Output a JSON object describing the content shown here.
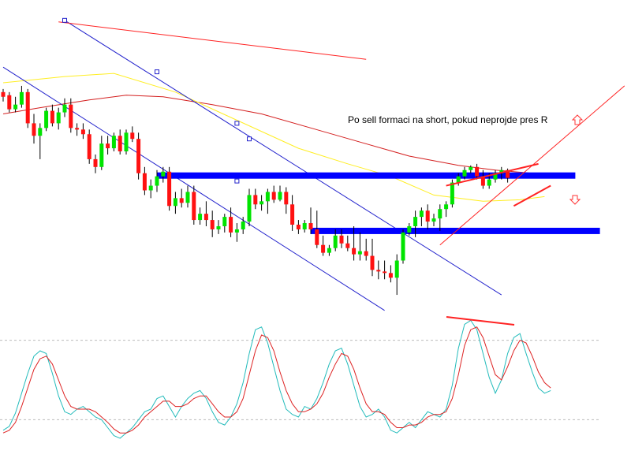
{
  "chart_data": [
    {
      "type": "candlestick",
      "colors": {
        "up": "#00e400",
        "down": "#ff1111",
        "wick": "#000000",
        "ma_fast": "#ffee22",
        "ma_slow": "#d42020",
        "level": "#0000ff",
        "channel": "#2222cc",
        "trend": "#ff2222"
      },
      "candles": [
        {
          "o": 58,
          "h": 60,
          "l": 52,
          "c": 55
        },
        {
          "o": 56,
          "h": 58,
          "l": 45,
          "c": 47
        },
        {
          "o": 47,
          "h": 55,
          "l": 45,
          "c": 50
        },
        {
          "o": 50,
          "h": 62,
          "l": 48,
          "c": 58
        },
        {
          "o": 58,
          "h": 60,
          "l": 35,
          "c": 38
        },
        {
          "o": 38,
          "h": 44,
          "l": 25,
          "c": 30
        },
        {
          "o": 30,
          "h": 38,
          "l": 15,
          "c": 35
        },
        {
          "o": 35,
          "h": 48,
          "l": 33,
          "c": 46
        },
        {
          "o": 46,
          "h": 50,
          "l": 36,
          "c": 38
        },
        {
          "o": 38,
          "h": 48,
          "l": 34,
          "c": 45
        },
        {
          "o": 45,
          "h": 54,
          "l": 42,
          "c": 50
        },
        {
          "o": 50,
          "h": 54,
          "l": 32,
          "c": 35
        },
        {
          "o": 35,
          "h": 38,
          "l": 30,
          "c": 34
        },
        {
          "o": 34,
          "h": 38,
          "l": 28,
          "c": 31
        },
        {
          "o": 31,
          "h": 34,
          "l": 12,
          "c": 15
        },
        {
          "o": 15,
          "h": 18,
          "l": 6,
          "c": 10
        },
        {
          "o": 10,
          "h": 30,
          "l": 8,
          "c": 25
        },
        {
          "o": 25,
          "h": 30,
          "l": 18,
          "c": 22
        },
        {
          "o": 22,
          "h": 32,
          "l": 20,
          "c": 30
        },
        {
          "o": 30,
          "h": 34,
          "l": 18,
          "c": 20
        },
        {
          "o": 20,
          "h": 34,
          "l": 18,
          "c": 32
        },
        {
          "o": 32,
          "h": 36,
          "l": 26,
          "c": 28
        },
        {
          "o": 28,
          "h": 32,
          "l": 2,
          "c": 6
        },
        {
          "o": 6,
          "h": 10,
          "l": -8,
          "c": -5
        },
        {
          "o": -5,
          "h": 2,
          "l": -10,
          "c": -2
        },
        {
          "o": -2,
          "h": 8,
          "l": -6,
          "c": 4
        },
        {
          "o": 4,
          "h": 10,
          "l": 0,
          "c": 7
        },
        {
          "o": 7,
          "h": 10,
          "l": -18,
          "c": -15
        },
        {
          "o": -15,
          "h": -6,
          "l": -20,
          "c": -10
        },
        {
          "o": -10,
          "h": -4,
          "l": -16,
          "c": -13
        },
        {
          "o": -13,
          "h": -2,
          "l": -16,
          "c": -6
        },
        {
          "o": -6,
          "h": -2,
          "l": -27,
          "c": -24
        },
        {
          "o": -24,
          "h": -16,
          "l": -27,
          "c": -20
        },
        {
          "o": -20,
          "h": -12,
          "l": -28,
          "c": -24
        },
        {
          "o": -24,
          "h": -18,
          "l": -35,
          "c": -30
        },
        {
          "o": -30,
          "h": -24,
          "l": -33,
          "c": -28
        },
        {
          "o": -28,
          "h": -20,
          "l": -32,
          "c": -22
        },
        {
          "o": -22,
          "h": -16,
          "l": -35,
          "c": -32
        },
        {
          "o": -32,
          "h": -26,
          "l": -38,
          "c": -30
        },
        {
          "o": -30,
          "h": -22,
          "l": -33,
          "c": -25
        },
        {
          "o": -25,
          "h": -4,
          "l": -28,
          "c": -8
        },
        {
          "o": -8,
          "h": -4,
          "l": -17,
          "c": -14
        },
        {
          "o": -14,
          "h": -8,
          "l": -18,
          "c": -12
        },
        {
          "o": -12,
          "h": -4,
          "l": -20,
          "c": -6
        },
        {
          "o": -6,
          "h": -2,
          "l": -13,
          "c": -11
        },
        {
          "o": -11,
          "h": -2,
          "l": -12,
          "c": -6
        },
        {
          "o": -6,
          "h": -3,
          "l": -20,
          "c": -14
        },
        {
          "o": -14,
          "h": -8,
          "l": -31,
          "c": -27
        },
        {
          "o": -27,
          "h": -24,
          "l": -33,
          "c": -30
        },
        {
          "o": -30,
          "h": -24,
          "l": -32,
          "c": -26
        },
        {
          "o": -26,
          "h": -16,
          "l": -33,
          "c": -30
        },
        {
          "o": -30,
          "h": -18,
          "l": -42,
          "c": -40
        },
        {
          "o": -40,
          "h": -34,
          "l": -47,
          "c": -45
        },
        {
          "o": -45,
          "h": -40,
          "l": -47,
          "c": -42
        },
        {
          "o": -42,
          "h": -30,
          "l": -44,
          "c": -34
        },
        {
          "o": -34,
          "h": -30,
          "l": -42,
          "c": -39
        },
        {
          "o": -39,
          "h": -34,
          "l": -44,
          "c": -42
        },
        {
          "o": -42,
          "h": -28,
          "l": -50,
          "c": -46
        },
        {
          "o": -46,
          "h": -32,
          "l": -50,
          "c": -44
        },
        {
          "o": -44,
          "h": -36,
          "l": -50,
          "c": -47
        },
        {
          "o": -47,
          "h": -36,
          "l": -60,
          "c": -56
        },
        {
          "o": -56,
          "h": -50,
          "l": -62,
          "c": -57
        },
        {
          "o": -57,
          "h": -50,
          "l": -62,
          "c": -58
        },
        {
          "o": -58,
          "h": -53,
          "l": -64,
          "c": -61
        },
        {
          "o": -61,
          "h": -46,
          "l": -72,
          "c": -50
        },
        {
          "o": -50,
          "h": -30,
          "l": -52,
          "c": -32
        },
        {
          "o": -32,
          "h": -26,
          "l": -34,
          "c": -28
        },
        {
          "o": -28,
          "h": -18,
          "l": -35,
          "c": -22
        },
        {
          "o": -22,
          "h": -16,
          "l": -28,
          "c": -18
        },
        {
          "o": -18,
          "h": -14,
          "l": -30,
          "c": -25
        },
        {
          "o": -25,
          "h": -20,
          "l": -28,
          "c": -23
        },
        {
          "o": -23,
          "h": -14,
          "l": -31,
          "c": -17
        },
        {
          "o": -17,
          "h": -12,
          "l": -22,
          "c": -14
        },
        {
          "o": -14,
          "h": 2,
          "l": -16,
          "c": 0
        },
        {
          "o": 0,
          "h": 6,
          "l": -2,
          "c": 4
        },
        {
          "o": 4,
          "h": 10,
          "l": 2,
          "c": 8
        },
        {
          "o": 8,
          "h": 11,
          "l": 6,
          "c": 10
        },
        {
          "o": 10,
          "h": 12,
          "l": 2,
          "c": 4
        },
        {
          "o": 4,
          "h": 8,
          "l": -4,
          "c": -2
        },
        {
          "o": -2,
          "h": 6,
          "l": -4,
          "c": 2
        },
        {
          "o": 2,
          "h": 8,
          "l": 0,
          "c": 6
        },
        {
          "o": 6,
          "h": 10,
          "l": 2,
          "c": 8
        },
        {
          "o": 8,
          "h": 9,
          "l": 0,
          "c": 3
        }
      ],
      "levels": [
        {
          "type": "resistance",
          "price": 4.5
        },
        {
          "type": "support",
          "price": -31
        }
      ],
      "channel": {
        "upper": [
          [
            10,
            104
          ],
          [
            81,
            -72
          ]
        ],
        "lower": [
          [
            0,
            74
          ],
          [
            62,
            -82
          ]
        ],
        "markers": [
          [
            10,
            104
          ],
          [
            25,
            71
          ],
          [
            38,
            38
          ],
          [
            40,
            28
          ],
          [
            38,
            1
          ]
        ]
      },
      "trendlines": [
        [
          [
            71,
            -40
          ],
          [
            101,
            62
          ]
        ],
        [
          [
            72,
            -2
          ],
          [
            87,
            12
          ]
        ],
        [
          [
            83,
            -15
          ],
          [
            89,
            -2
          ]
        ],
        [
          [
            9,
            103
          ],
          [
            59,
            79
          ]
        ]
      ],
      "ma_fast": [
        [
          0,
          64
        ],
        [
          10,
          68
        ],
        [
          18,
          70
        ],
        [
          28,
          58
        ],
        [
          38,
          40
        ],
        [
          48,
          22
        ],
        [
          56,
          12
        ],
        [
          63,
          4
        ],
        [
          70,
          -8
        ],
        [
          78,
          -12
        ],
        [
          84,
          -11
        ],
        [
          88,
          -9
        ]
      ],
      "ma_slow": [
        [
          0,
          44
        ],
        [
          6,
          48
        ],
        [
          14,
          53
        ],
        [
          20,
          56
        ],
        [
          26,
          55
        ],
        [
          34,
          50
        ],
        [
          42,
          44
        ],
        [
          50,
          35
        ],
        [
          58,
          26
        ],
        [
          66,
          17
        ],
        [
          74,
          11
        ],
        [
          80,
          8
        ],
        [
          86,
          6
        ],
        [
          89,
          5.5
        ]
      ],
      "annotation": {
        "text": "Po sell formaci na short, pokud neprojde pres R",
        "arrow_up": "arrow-up-icon",
        "arrow_down": "arrow-down-icon"
      },
      "ylim": [
        -74,
        112
      ]
    },
    {
      "type": "line",
      "name": "stochastic-oscillator",
      "ylim": [
        0,
        100
      ],
      "levels": [
        80,
        20
      ],
      "series": [
        {
          "color": "#22bbbb",
          "values": [
            12,
            15,
            25,
            40,
            55,
            68,
            72,
            70,
            55,
            38,
            26,
            24,
            28,
            30,
            26,
            22,
            20,
            14,
            8,
            6,
            10,
            14,
            20,
            26,
            28,
            36,
            38,
            30,
            22,
            30,
            36,
            40,
            42,
            36,
            26,
            18,
            16,
            22,
            32,
            48,
            70,
            88,
            90,
            78,
            60,
            42,
            28,
            24,
            22,
            30,
            28,
            36,
            48,
            62,
            72,
            74,
            62,
            46,
            30,
            22,
            24,
            28,
            22,
            12,
            10,
            14,
            18,
            14,
            20,
            26,
            24,
            22,
            28,
            46,
            74,
            92,
            95,
            88,
            70,
            52,
            40,
            50,
            70,
            82,
            85,
            70,
            56,
            44,
            40,
            42
          ]
        },
        {
          "color": "#dd2222",
          "values": [
            10,
            12,
            18,
            30,
            44,
            58,
            66,
            68,
            62,
            50,
            38,
            30,
            28,
            28,
            28,
            26,
            22,
            18,
            13,
            10,
            10,
            12,
            16,
            22,
            26,
            30,
            34,
            34,
            30,
            30,
            32,
            36,
            38,
            38,
            32,
            26,
            22,
            22,
            26,
            36,
            54,
            72,
            84,
            82,
            72,
            56,
            42,
            32,
            26,
            26,
            28,
            32,
            40,
            52,
            62,
            70,
            68,
            58,
            44,
            32,
            26,
            26,
            24,
            18,
            14,
            14,
            16,
            16,
            18,
            22,
            24,
            24,
            26,
            36,
            54,
            76,
            88,
            90,
            82,
            68,
            54,
            50,
            60,
            72,
            80,
            78,
            68,
            56,
            48,
            44
          ]
        }
      ]
    }
  ]
}
